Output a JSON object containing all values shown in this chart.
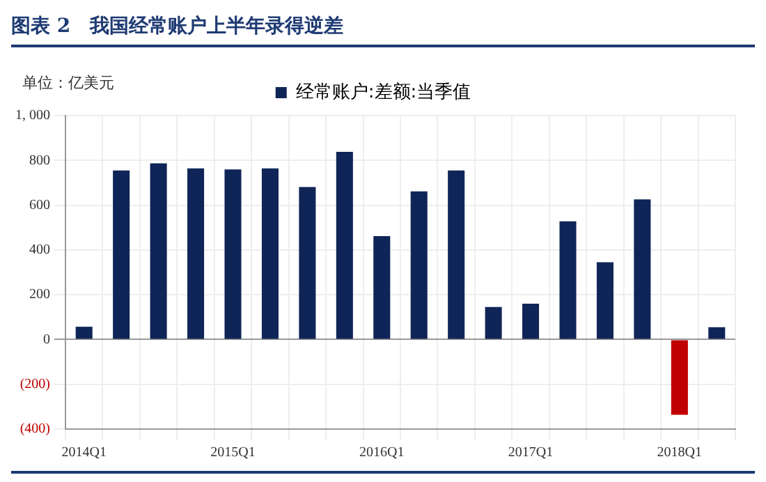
{
  "chart_data": {
    "type": "bar",
    "title": "图表 2　我国经常账户上半年录得逆差",
    "ylabel": "单位：亿美元",
    "categories": [
      "2014Q1",
      null,
      null,
      null,
      "2015Q1",
      null,
      null,
      null,
      "2016Q1",
      null,
      null,
      null,
      "2017Q1",
      null,
      null,
      null,
      "2018Q1",
      null
    ],
    "series": [
      {
        "name": "经常账户:差额:当季值",
        "color": "#0f2557",
        "colors": [
          "#0f2557",
          "#0f2557",
          "#0f2557",
          "#0f2557",
          "#0f2557",
          "#0f2557",
          "#0f2557",
          "#0f2557",
          "#0f2557",
          "#0f2557",
          "#0f2557",
          "#0f2557",
          "#0f2557",
          "#0f2557",
          "#0f2557",
          "#0f2557",
          "#c00000",
          "#0f2557"
        ],
        "values": [
          57,
          755,
          787,
          764,
          760,
          764,
          681,
          838,
          462,
          662,
          755,
          145,
          160,
          528,
          345,
          626,
          -336,
          55
        ]
      }
    ],
    "ylim": [
      -400,
      1000
    ],
    "yticks": [
      {
        "value": -400,
        "label": "(400)"
      },
      {
        "value": -200,
        "label": "(200)"
      },
      0,
      200,
      400,
      600,
      800,
      {
        "value": 1000,
        "label": "1, 000"
      }
    ],
    "grid": true,
    "legend": "top"
  }
}
